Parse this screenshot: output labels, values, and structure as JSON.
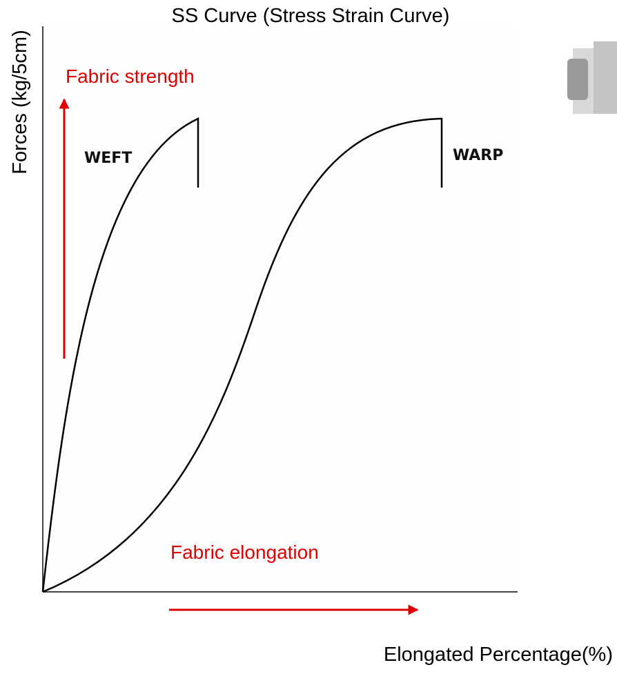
{
  "title": "SS Curve (Stress Strain Curve)",
  "y_axis_label": "Forces (kg/5cm)",
  "x_axis_label": "Elongated Percentage(%)",
  "annotations": {
    "strength": "Fabric strength",
    "elongation": "Fabric elongation"
  },
  "curves": [
    {
      "label": "WEFT"
    },
    {
      "label": "WARP"
    }
  ]
}
